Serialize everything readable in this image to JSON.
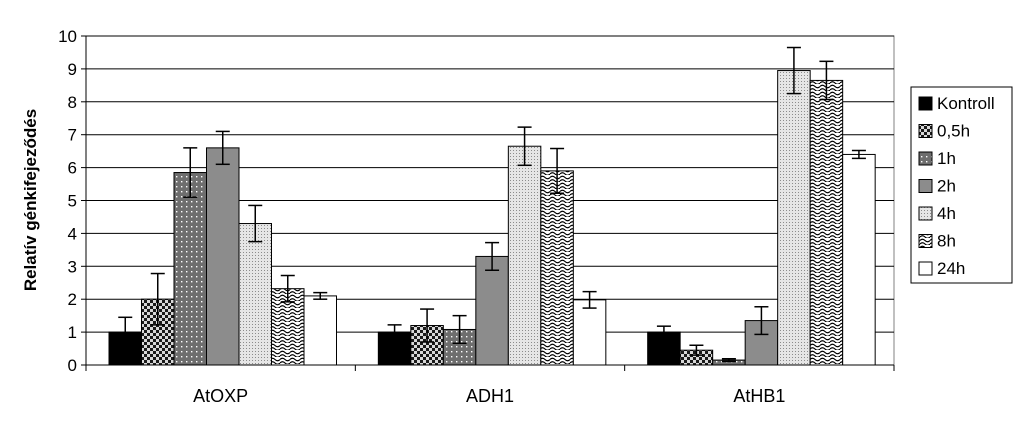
{
  "chart_data": {
    "type": "bar",
    "title": "",
    "xlabel": "",
    "ylabel": "Relatív génkifejeződés",
    "ylim": [
      0,
      10
    ],
    "yticks": [
      0,
      1,
      2,
      3,
      4,
      5,
      6,
      7,
      8,
      9,
      10
    ],
    "grid": true,
    "legend_position": "right",
    "categories": [
      "AtOXP",
      "ADH1",
      "AtHB1"
    ],
    "series": [
      {
        "name": "Kontroll",
        "values": [
          1.0,
          1.0,
          1.0
        ],
        "errors": [
          0.45,
          0.22,
          0.18
        ],
        "pattern": "solid-black"
      },
      {
        "name": "0,5h",
        "values": [
          2.0,
          1.2,
          0.45
        ],
        "errors": [
          0.78,
          0.5,
          0.15
        ],
        "pattern": "checker"
      },
      {
        "name": "1h",
        "values": [
          5.85,
          1.08,
          0.15
        ],
        "errors": [
          0.75,
          0.42,
          0.04
        ],
        "pattern": "dots-dark"
      },
      {
        "name": "2h",
        "values": [
          6.6,
          3.3,
          1.35
        ],
        "errors": [
          0.5,
          0.42,
          0.42
        ],
        "pattern": "solid-gray"
      },
      {
        "name": "4h",
        "values": [
          4.3,
          6.65,
          8.95
        ],
        "errors": [
          0.55,
          0.58,
          0.7
        ],
        "pattern": "dots-light"
      },
      {
        "name": "8h",
        "values": [
          2.32,
          5.9,
          8.65
        ],
        "errors": [
          0.4,
          0.68,
          0.58
        ],
        "pattern": "waves"
      },
      {
        "name": "24h",
        "values": [
          2.1,
          1.98,
          6.4
        ],
        "errors": [
          0.1,
          0.25,
          0.12
        ],
        "pattern": "solid-white"
      }
    ]
  }
}
